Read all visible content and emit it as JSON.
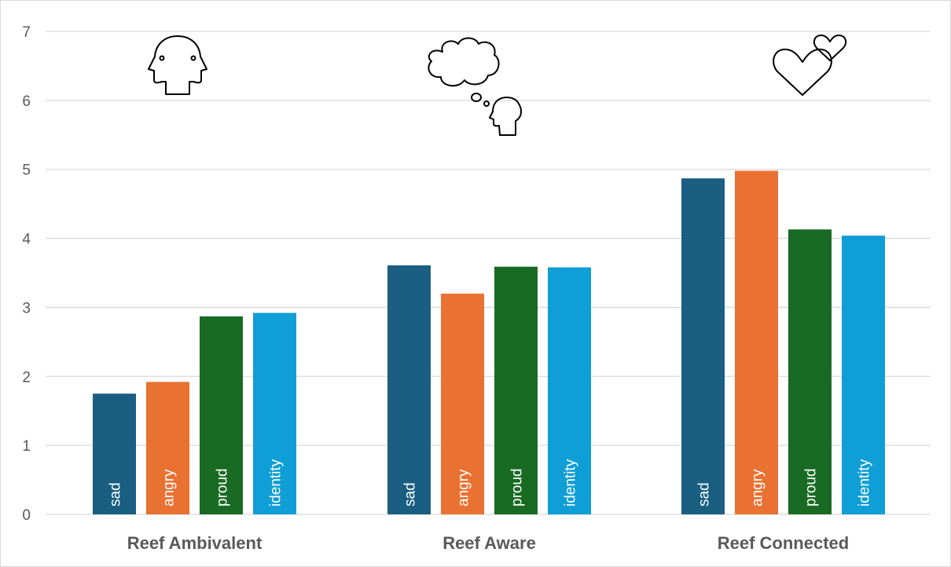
{
  "chart_data": {
    "type": "bar",
    "categories": [
      "Reef Ambivalent",
      "Reef Aware",
      "Reef Connected"
    ],
    "series": [
      {
        "name": "sad",
        "color": "#1a5e82",
        "values": [
          1.75,
          3.61,
          4.87
        ]
      },
      {
        "name": "angry",
        "color": "#e97132",
        "values": [
          1.92,
          3.2,
          4.98
        ]
      },
      {
        "name": "proud",
        "color": "#196b24",
        "values": [
          2.87,
          3.59,
          4.13
        ]
      },
      {
        "name": "identity",
        "color": "#0f9ed5",
        "values": [
          2.92,
          3.58,
          4.04
        ]
      }
    ],
    "title": "",
    "xlabel": "",
    "ylabel": "",
    "ylim": [
      0,
      7
    ],
    "yticks": [
      0,
      1,
      2,
      3,
      4,
      5,
      6,
      7
    ],
    "grid": true,
    "bar_labels": "inside-bottom-rotated",
    "legend": "none",
    "category_icons": [
      "head-profile-icon",
      "thought-bubble-icon",
      "hearts-icon"
    ]
  },
  "colors": {
    "gridline": "#d9d9d9",
    "text": "#595959",
    "bar_label": "#ffffff"
  }
}
